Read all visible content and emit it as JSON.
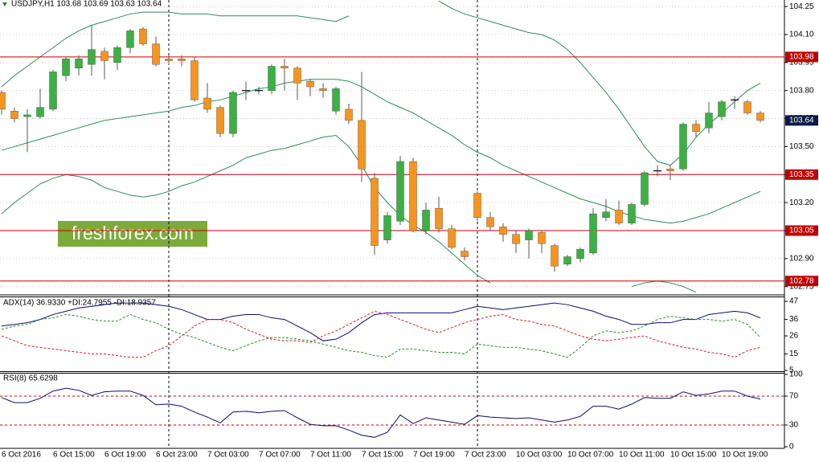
{
  "chart_data": [
    {
      "type": "candlestick",
      "title": "USDJPY,H1 103.68 103.69 103.63 103.64",
      "watermark": "freshforex.com",
      "categories": [
        "6 Oct 2016",
        null,
        null,
        null,
        "6 Oct 15:00",
        null,
        null,
        null,
        "6 Oct 19:00",
        null,
        null,
        null,
        "6 Oct 23:00",
        null,
        null,
        null,
        "7 Oct 03:00",
        null,
        null,
        null,
        "7 Oct 07:00",
        null,
        null,
        null,
        "7 Oct 11:00",
        null,
        null,
        null,
        "7 Oct 15:00",
        null,
        null,
        null,
        "7 Oct 19:00",
        null,
        null,
        null,
        "7 Oct 23:00",
        null,
        null,
        null,
        "10 Oct 03:00",
        null,
        null,
        null,
        "10 Oct 07:00",
        null,
        null,
        null,
        "10 Oct 11:00",
        null,
        null,
        null,
        "10 Oct 15:00",
        null,
        null,
        null,
        "10 Oct 19:00",
        null,
        null,
        null
      ],
      "open": [
        103.79,
        103.69,
        103.66,
        103.66,
        103.7,
        103.88,
        103.92,
        103.94,
        104.01,
        103.95,
        104.03,
        104.13,
        104.05,
        103.97,
        103.97,
        103.96,
        103.76,
        103.71,
        103.57,
        103.8,
        103.8,
        103.8,
        103.93,
        103.92,
        103.85,
        103.81,
        103.69,
        103.7,
        103.64,
        103.33,
        103.0,
        103.1,
        103.42,
        103.05,
        103.17,
        103.06,
        102.94,
        103.25,
        103.12,
        103.07,
        103.03,
        103.0,
        103.04,
        102.97,
        102.87,
        102.9,
        102.93,
        103.12,
        103.16,
        103.09,
        103.19,
        103.37,
        103.38,
        103.38,
        103.62,
        103.6,
        103.66,
        103.75,
        103.74,
        103.68
      ],
      "high": [
        103.8,
        103.71,
        103.7,
        103.81,
        103.91,
        103.98,
        103.99,
        104.15,
        104.03,
        104.04,
        104.13,
        104.14,
        104.09,
        103.99,
        103.99,
        103.98,
        103.84,
        103.72,
        103.8,
        103.85,
        103.82,
        103.94,
        103.97,
        103.93,
        103.86,
        103.84,
        103.82,
        103.73,
        103.9,
        103.36,
        103.15,
        103.45,
        103.44,
        103.2,
        103.23,
        103.08,
        102.96,
        103.26,
        103.15,
        103.09,
        103.05,
        103.06,
        103.05,
        102.98,
        102.92,
        102.96,
        103.17,
        103.22,
        103.21,
        103.2,
        103.37,
        103.4,
        103.4,
        103.63,
        103.64,
        103.74,
        103.75,
        103.77,
        103.75,
        103.69
      ],
      "low": [
        103.67,
        103.63,
        103.47,
        103.65,
        103.69,
        103.85,
        103.88,
        103.88,
        103.86,
        103.91,
        104.0,
        104.04,
        103.93,
        103.94,
        103.93,
        103.74,
        103.68,
        103.55,
        103.55,
        103.75,
        103.78,
        103.78,
        103.8,
        103.75,
        103.77,
        103.76,
        103.67,
        103.62,
        103.31,
        102.92,
        102.98,
        103.08,
        103.04,
        103.03,
        103.04,
        102.95,
        102.89,
        103.1,
        103.05,
        102.99,
        102.93,
        102.9,
        102.93,
        102.83,
        102.86,
        102.88,
        102.92,
        103.1,
        103.08,
        103.08,
        103.18,
        103.34,
        103.32,
        103.37,
        103.55,
        103.57,
        103.64,
        103.7,
        103.67,
        103.63
      ],
      "close": [
        103.7,
        103.65,
        103.67,
        103.71,
        103.9,
        103.97,
        103.97,
        104.02,
        103.96,
        104.03,
        104.12,
        104.05,
        103.94,
        103.96,
        103.96,
        103.75,
        103.7,
        103.57,
        103.79,
        103.8,
        103.8,
        103.93,
        103.92,
        103.84,
        103.82,
        103.8,
        103.81,
        103.64,
        103.38,
        102.97,
        103.13,
        103.42,
        103.05,
        103.16,
        103.06,
        102.96,
        102.91,
        103.12,
        103.07,
        103.03,
        102.98,
        103.05,
        102.98,
        102.86,
        102.91,
        102.95,
        103.14,
        103.15,
        103.09,
        103.19,
        103.36,
        103.37,
        103.37,
        103.62,
        103.58,
        103.68,
        103.74,
        103.75,
        103.68,
        103.64
      ],
      "colors": {
        "up": "#3cb043",
        "down": "#f7941d",
        "doji": "#000000",
        "wick": "#5a5a5a"
      },
      "bands": {
        "color": "#2e8b57",
        "upper": [
          103.82,
          103.88,
          103.93,
          103.98,
          104.03,
          104.08,
          104.12,
          104.15,
          104.17,
          104.19,
          104.21,
          104.22,
          104.22,
          104.22,
          104.21,
          104.21,
          104.21,
          104.2,
          104.2,
          104.2,
          104.2,
          104.2,
          104.2,
          104.2,
          104.19,
          104.18,
          104.17,
          104.2,
          null,
          null,
          null,
          null,
          null,
          null,
          104.28,
          104.24,
          104.21,
          104.19,
          104.17,
          104.15,
          104.13,
          104.11,
          104.1,
          104.07,
          104.02,
          103.95,
          103.87,
          103.79,
          103.7,
          103.6,
          103.5,
          103.42,
          103.4,
          103.46,
          103.55,
          103.62,
          103.68,
          103.74,
          103.8,
          103.84
        ],
        "middle": [
          103.48,
          103.5,
          103.52,
          103.54,
          103.56,
          103.58,
          103.6,
          103.62,
          103.64,
          103.65,
          103.66,
          103.67,
          103.68,
          103.69,
          103.71,
          103.72,
          103.74,
          103.75,
          103.77,
          103.79,
          103.81,
          103.82,
          103.84,
          103.85,
          103.86,
          103.86,
          103.86,
          103.85,
          103.82,
          103.78,
          103.74,
          103.71,
          103.68,
          103.64,
          103.6,
          103.56,
          103.51,
          103.47,
          103.44,
          103.4,
          103.37,
          103.34,
          103.31,
          103.28,
          103.25,
          103.22,
          103.2,
          103.18,
          103.15,
          103.13,
          103.11,
          103.1,
          103.09,
          103.1,
          103.12,
          103.14,
          103.17,
          103.2,
          103.23,
          103.26
        ],
        "lower": [
          103.14,
          103.2,
          103.25,
          103.3,
          103.33,
          103.35,
          103.34,
          103.32,
          103.28,
          103.26,
          103.24,
          103.23,
          103.24,
          103.26,
          103.29,
          103.31,
          103.34,
          103.37,
          103.4,
          103.44,
          103.46,
          103.48,
          103.49,
          103.51,
          103.53,
          103.55,
          103.56,
          103.5,
          103.4,
          103.28,
          103.2,
          103.13,
          103.08,
          103.04,
          102.99,
          102.93,
          102.87,
          102.81,
          102.77,
          null,
          null,
          null,
          null,
          null,
          null,
          null,
          null,
          null,
          null,
          102.75,
          102.77,
          102.78,
          102.77,
          102.75,
          102.72,
          null,
          null,
          null,
          null,
          null
        ]
      },
      "levels": {
        "color": "#c00000",
        "values": [
          103.98,
          103.35,
          103.05,
          102.78
        ]
      },
      "last_price": 103.64,
      "ylim": [
        102.71,
        104.285
      ],
      "yticks": [
        104.25,
        {
          "value": 104.1,
          "label": "104.10"
        },
        103.95,
        {
          "value": 103.8,
          "label": "103.80"
        },
        103.65,
        {
          "value": 103.5,
          "label": "103.50"
        },
        103.35,
        {
          "value": 103.2,
          "label": "103.20"
        },
        103.05,
        {
          "value": 102.9,
          "label": "102.90"
        },
        102.75
      ],
      "grid": true
    },
    {
      "type": "indicator",
      "title": "ADX(14) 36.9330 +DI:24.7955 -DI:18.9357",
      "ylim": [
        5,
        49
      ],
      "yticks": [
        47,
        36,
        26,
        15,
        5
      ],
      "series": [
        {
          "color": "#0b0b70",
          "dashed": false,
          "values": [
            32,
            33,
            34,
            36,
            39,
            41,
            43,
            44,
            45,
            46,
            46,
            46,
            45,
            44,
            42,
            39,
            36,
            36,
            38,
            39,
            39,
            37,
            36,
            32,
            28,
            23,
            24,
            28,
            34,
            39,
            40,
            40,
            40,
            40,
            40,
            40,
            42,
            44,
            43,
            42,
            43,
            44,
            45,
            46,
            45,
            43,
            41,
            38,
            36,
            33,
            33,
            34,
            34,
            36,
            36,
            39,
            40,
            41,
            40,
            37
          ]
        },
        {
          "color": "#2a8a2a",
          "dashed": true,
          "values": [
            30,
            32,
            33,
            36,
            37,
            39,
            38,
            36,
            35,
            35,
            39,
            36,
            34,
            30,
            27,
            25,
            22,
            19,
            17,
            20,
            23,
            25,
            25,
            24,
            23,
            21,
            19,
            17,
            16,
            14,
            13,
            18,
            18,
            17,
            16,
            16,
            15,
            21,
            20,
            19,
            19,
            18,
            17,
            15,
            13,
            19,
            26,
            29,
            28,
            29,
            32,
            36,
            38,
            37,
            36,
            36,
            35,
            36,
            33,
            25
          ]
        },
        {
          "color": "#cc2222",
          "dashed": true,
          "values": [
            26,
            23,
            20,
            19,
            18,
            17,
            16,
            15,
            15,
            14,
            13,
            13,
            17,
            20,
            26,
            32,
            36,
            36,
            34,
            30,
            27,
            24,
            23,
            23,
            22,
            26,
            29,
            33,
            37,
            41,
            39,
            36,
            33,
            30,
            28,
            31,
            34,
            36,
            38,
            39,
            36,
            35,
            33,
            32,
            29,
            26,
            24,
            23,
            24,
            25,
            26,
            23,
            21,
            19,
            18,
            16,
            15,
            13,
            17,
            19
          ]
        }
      ]
    },
    {
      "type": "indicator",
      "title": "RSI(8) 65.6298",
      "ylim": [
        0,
        100
      ],
      "yticks": [
        100,
        70,
        30,
        0
      ],
      "levels": {
        "color": "#c00000",
        "values": [
          70,
          30
        ]
      },
      "series": [
        {
          "color": "#0b0b70",
          "dashed": false,
          "values": [
            68,
            61,
            61,
            67,
            77,
            81,
            78,
            71,
            76,
            77,
            77,
            71,
            58,
            59,
            56,
            48,
            41,
            33,
            48,
            49,
            47,
            49,
            50,
            40,
            31,
            29,
            29,
            23,
            16,
            13,
            20,
            44,
            32,
            40,
            37,
            34,
            31,
            43,
            41,
            40,
            39,
            40,
            37,
            34,
            37,
            42,
            56,
            56,
            52,
            59,
            68,
            67,
            67,
            76,
            71,
            73,
            77,
            77,
            70,
            66
          ]
        }
      ]
    }
  ]
}
